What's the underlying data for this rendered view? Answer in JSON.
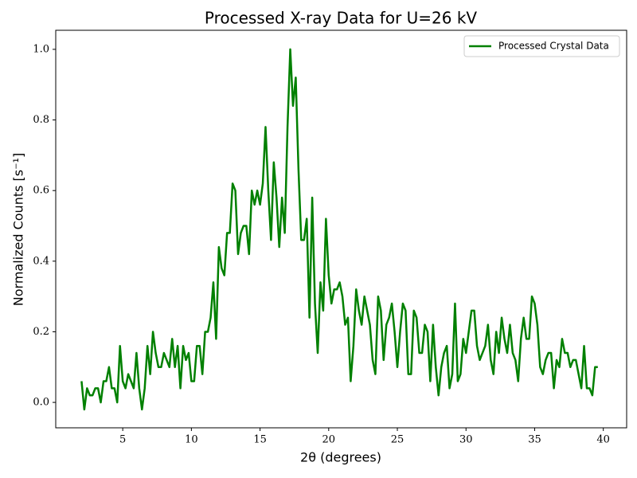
{
  "chart_data": {
    "type": "line",
    "title": "Processed X-ray Data for U=26 kV",
    "x_label": "2θ (degrees)",
    "y_label": "Normalized Counts [s⁻¹]",
    "x": [
      2.0,
      2.2,
      2.4,
      2.6,
      2.8,
      3.0,
      3.2,
      3.4,
      3.6,
      3.8,
      4.0,
      4.2,
      4.4,
      4.6,
      4.8,
      5.0,
      5.2,
      5.4,
      5.6,
      5.8,
      6.0,
      6.2,
      6.4,
      6.6,
      6.8,
      7.0,
      7.2,
      7.4,
      7.6,
      7.8,
      8.0,
      8.2,
      8.4,
      8.6,
      8.8,
      9.0,
      9.2,
      9.4,
      9.6,
      9.8,
      10.0,
      10.2,
      10.4,
      10.6,
      10.8,
      11.0,
      11.2,
      11.4,
      11.6,
      11.8,
      12.0,
      12.2,
      12.4,
      12.6,
      12.8,
      13.0,
      13.2,
      13.4,
      13.6,
      13.8,
      14.0,
      14.2,
      14.4,
      14.6,
      14.8,
      15.0,
      15.2,
      15.4,
      15.6,
      15.8,
      16.0,
      16.2,
      16.4,
      16.6,
      16.8,
      17.0,
      17.2,
      17.4,
      17.6,
      17.8,
      18.0,
      18.2,
      18.4,
      18.6,
      18.8,
      19.0,
      19.2,
      19.4,
      19.6,
      19.8,
      20.0,
      20.2,
      20.4,
      20.6,
      20.8,
      21.0,
      21.2,
      21.4,
      21.6,
      21.8,
      22.0,
      22.2,
      22.4,
      22.6,
      22.8,
      23.0,
      23.2,
      23.4,
      23.6,
      23.8,
      24.0,
      24.2,
      24.4,
      24.6,
      24.8,
      25.0,
      25.2,
      25.4,
      25.6,
      25.8,
      26.0,
      26.2,
      26.4,
      26.6,
      26.8,
      27.0,
      27.2,
      27.4,
      27.6,
      27.8,
      28.0,
      28.2,
      28.4,
      28.6,
      28.8,
      29.0,
      29.2,
      29.4,
      29.6,
      29.8,
      30.0,
      30.2,
      30.4,
      30.6,
      30.8,
      31.0,
      31.2,
      31.4,
      31.6,
      31.8,
      32.0,
      32.2,
      32.4,
      32.6,
      32.8,
      33.0,
      33.2,
      33.4,
      33.6,
      33.8,
      34.0,
      34.2,
      34.4,
      34.6,
      34.8,
      35.0,
      35.2,
      35.4,
      35.6,
      35.8,
      36.0,
      36.2,
      36.4,
      36.6,
      36.8,
      37.0,
      37.2,
      37.4,
      37.6,
      37.8,
      38.0,
      38.2,
      38.4,
      38.6,
      38.8,
      39.0,
      39.2,
      39.4,
      39.6
    ],
    "series": [
      {
        "name": "Processed Crystal Data",
        "color": "#008000",
        "values": [
          0.06,
          -0.02,
          0.04,
          0.02,
          0.02,
          0.04,
          0.04,
          0.0,
          0.06,
          0.06,
          0.1,
          0.04,
          0.04,
          0.0,
          0.16,
          0.06,
          0.04,
          0.08,
          0.06,
          0.04,
          0.14,
          0.04,
          -0.02,
          0.04,
          0.16,
          0.08,
          0.2,
          0.14,
          0.1,
          0.1,
          0.14,
          0.12,
          0.1,
          0.18,
          0.1,
          0.16,
          0.04,
          0.16,
          0.12,
          0.14,
          0.06,
          0.06,
          0.16,
          0.16,
          0.08,
          0.2,
          0.2,
          0.24,
          0.34,
          0.18,
          0.44,
          0.38,
          0.36,
          0.48,
          0.48,
          0.62,
          0.6,
          0.42,
          0.48,
          0.5,
          0.5,
          0.42,
          0.6,
          0.56,
          0.6,
          0.56,
          0.62,
          0.78,
          0.6,
          0.46,
          0.68,
          0.58,
          0.44,
          0.58,
          0.48,
          0.78,
          1.0,
          0.84,
          0.92,
          0.66,
          0.46,
          0.46,
          0.52,
          0.24,
          0.58,
          0.28,
          0.14,
          0.34,
          0.26,
          0.52,
          0.36,
          0.28,
          0.32,
          0.32,
          0.34,
          0.3,
          0.22,
          0.24,
          0.06,
          0.16,
          0.32,
          0.26,
          0.22,
          0.3,
          0.26,
          0.22,
          0.12,
          0.08,
          0.3,
          0.26,
          0.12,
          0.22,
          0.24,
          0.28,
          0.2,
          0.1,
          0.2,
          0.28,
          0.26,
          0.08,
          0.08,
          0.26,
          0.24,
          0.14,
          0.14,
          0.22,
          0.2,
          0.06,
          0.22,
          0.1,
          0.02,
          0.1,
          0.14,
          0.16,
          0.04,
          0.08,
          0.28,
          0.06,
          0.08,
          0.18,
          0.14,
          0.2,
          0.26,
          0.26,
          0.16,
          0.12,
          0.14,
          0.16,
          0.22,
          0.12,
          0.08,
          0.2,
          0.14,
          0.24,
          0.18,
          0.14,
          0.22,
          0.14,
          0.12,
          0.06,
          0.18,
          0.24,
          0.18,
          0.18,
          0.3,
          0.28,
          0.22,
          0.1,
          0.08,
          0.12,
          0.14,
          0.14,
          0.04,
          0.12,
          0.1,
          0.18,
          0.14,
          0.14,
          0.1,
          0.12,
          0.12,
          0.08,
          0.04,
          0.16,
          0.04,
          0.04,
          0.02,
          0.1,
          0.1
        ]
      }
    ],
    "xlim": [
      0.12,
      41.7
    ],
    "ylim": [
      -0.072,
      1.054
    ],
    "xticks": [
      5,
      10,
      15,
      20,
      25,
      30,
      35,
      40
    ],
    "yticks": [
      {
        "value": 0,
        "label": "0.0"
      },
      0.2,
      0.4,
      0.6,
      0.8,
      {
        "value": 1,
        "label": "1.0"
      }
    ],
    "legend": "upper right",
    "grid": false
  }
}
